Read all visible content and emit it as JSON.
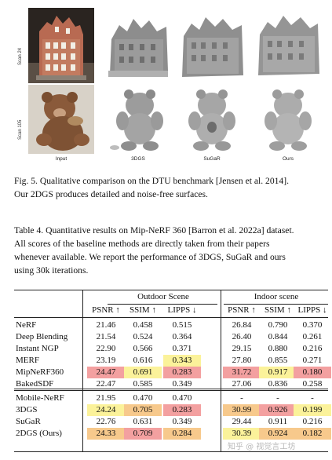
{
  "figure": {
    "scan_labels": [
      "Scan 24",
      "Scan 105"
    ],
    "column_labels": [
      "Input",
      "3DGS",
      "SuGaR",
      "Ours"
    ]
  },
  "fig_caption": {
    "lines": [
      "Fig. 5.  Qualitative comparison on the DTU benchmark [Jensen et al. 2014].",
      "Our 2DGS produces detailed and noise-free surfaces."
    ]
  },
  "table_caption": {
    "lines": [
      "Table 4.  Quantitative results on Mip-NeRF 360 [Barron et al. 2022a] dataset.",
      "All scores of the baseline methods are directly taken from their papers",
      "whenever available. We report the performance of 3DGS, SuGaR and ours",
      "using 30k iterations."
    ]
  },
  "table": {
    "group_headers": [
      "Outdoor Scene",
      "Indoor scene"
    ],
    "metric_headers": [
      "PSNR ↑",
      "SSIM ↑",
      "LIPPS ↓",
      "PSNR ↑",
      "SSIM ↑",
      "LIPPS ↓"
    ],
    "rows": [
      {
        "method": "NeRF",
        "values": [
          "21.46",
          "0.458",
          "0.515",
          "26.84",
          "0.790",
          "0.370"
        ],
        "hl": [
          "",
          "",
          "",
          "",
          "",
          ""
        ]
      },
      {
        "method": "Deep Blending",
        "values": [
          "21.54",
          "0.524",
          "0.364",
          "26.40",
          "0.844",
          "0.261"
        ],
        "hl": [
          "",
          "",
          "",
          "",
          "",
          ""
        ]
      },
      {
        "method": "Instant NGP",
        "values": [
          "22.90",
          "0.566",
          "0.371",
          "29.15",
          "0.880",
          "0.216"
        ],
        "hl": [
          "",
          "",
          "",
          "",
          "",
          ""
        ]
      },
      {
        "method": "MERF",
        "values": [
          "23.19",
          "0.616",
          "0.343",
          "27.80",
          "0.855",
          "0.271"
        ],
        "hl": [
          "",
          "",
          "yellow",
          "",
          "",
          ""
        ]
      },
      {
        "method": "MipNeRF360",
        "values": [
          "24.47",
          "0.691",
          "0.283",
          "31.72",
          "0.917",
          "0.180"
        ],
        "hl": [
          "red",
          "yellow",
          "red",
          "red",
          "yellow",
          "red"
        ]
      },
      {
        "method": "BakedSDF",
        "values": [
          "22.47",
          "0.585",
          "0.349",
          "27.06",
          "0.836",
          "0.258"
        ],
        "hl": [
          "",
          "",
          "",
          "",
          "",
          ""
        ]
      },
      {
        "method": "Mobile-NeRF",
        "values": [
          "21.95",
          "0.470",
          "0.470",
          "-",
          "-",
          "-"
        ],
        "hl": [
          "",
          "",
          "",
          "",
          "",
          ""
        ]
      },
      {
        "method": "3DGS",
        "values": [
          "24.24",
          "0.705",
          "0.283",
          "30.99",
          "0.926",
          "0.199"
        ],
        "hl": [
          "yellow",
          "orange",
          "red",
          "orange",
          "red",
          "yellow"
        ]
      },
      {
        "method": "SuGaR",
        "values": [
          "22.76",
          "0.631",
          "0.349",
          "29.44",
          "0.911",
          "0.216"
        ],
        "hl": [
          "",
          "",
          "",
          "",
          "",
          ""
        ]
      },
      {
        "method": "2DGS (Ours)",
        "values": [
          "24.33",
          "0.709",
          "0.284",
          "30.39",
          "0.924",
          "0.182"
        ],
        "hl": [
          "orange",
          "red",
          "orange",
          "yellow",
          "orange",
          "orange"
        ]
      }
    ],
    "colors": {
      "red": "#f3a0a0",
      "orange": "#f7c98c",
      "yellow": "#fbf29a"
    }
  },
  "watermark": "知乎 @ 视觉言工坊"
}
